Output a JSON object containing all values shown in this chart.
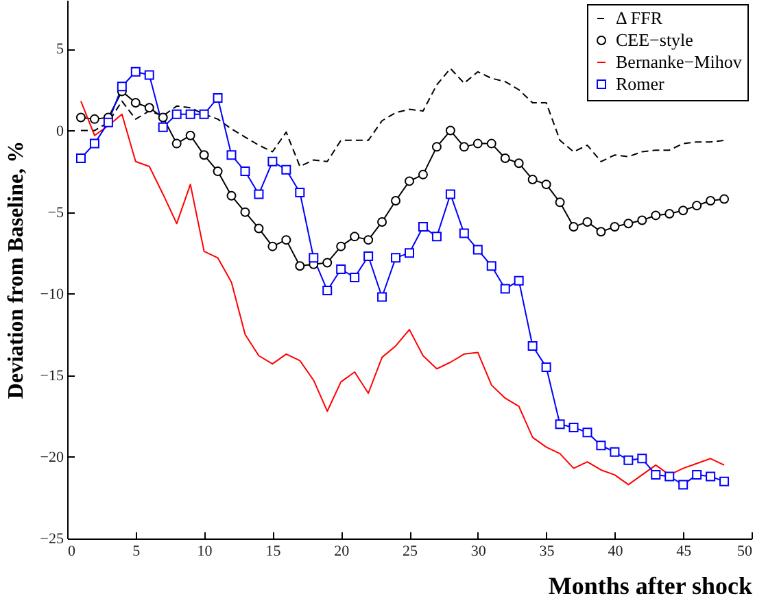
{
  "chart_data": {
    "type": "line",
    "xlabel": "Months after shock",
    "ylabel": "Deviation from Baseline, %",
    "x": [
      1,
      2,
      3,
      4,
      5,
      6,
      7,
      8,
      9,
      10,
      11,
      12,
      13,
      14,
      15,
      16,
      17,
      18,
      19,
      20,
      21,
      22,
      23,
      24,
      25,
      26,
      27,
      28,
      29,
      30,
      31,
      32,
      33,
      34,
      35,
      36,
      37,
      38,
      39,
      40,
      41,
      42,
      43,
      44,
      45,
      46,
      47,
      48
    ],
    "xlim": [
      0,
      50
    ],
    "xticks": [
      0,
      5,
      10,
      15,
      20,
      25,
      30,
      35,
      40,
      45,
      50
    ],
    "ylim": [
      -25,
      8
    ],
    "yticks": [
      -25,
      -20,
      -15,
      -10,
      -5,
      0,
      5
    ],
    "grid": false,
    "legend": "top right",
    "series": [
      {
        "name": "Δ FFR",
        "color": "#000000",
        "marker": "none",
        "line_style": "dashed",
        "values": [
          0.0,
          0.0,
          0.5,
          1.8,
          0.7,
          1.2,
          0.9,
          1.5,
          1.4,
          1.0,
          0.7,
          0.1,
          -0.4,
          -0.9,
          -1.3,
          -0.1,
          -2.2,
          -1.8,
          -1.9,
          -0.6,
          -0.6,
          -0.6,
          0.6,
          1.1,
          1.3,
          1.2,
          2.8,
          3.8,
          2.9,
          3.6,
          3.2,
          3.0,
          2.5,
          1.7,
          1.7,
          -0.6,
          -1.3,
          -0.9,
          -1.9,
          -1.5,
          -1.6,
          -1.3,
          -1.2,
          -1.2,
          -0.8,
          -0.7,
          -0.7,
          -0.6
        ]
      },
      {
        "name": "CEE−style",
        "color": "#000000",
        "marker": "circle",
        "line_style": "solid",
        "values": [
          0.8,
          0.7,
          0.8,
          2.4,
          1.7,
          1.4,
          0.8,
          -0.8,
          -0.3,
          -1.5,
          -2.5,
          -4.0,
          -5.0,
          -6.0,
          -7.1,
          -6.7,
          -8.3,
          -8.2,
          -8.1,
          -7.1,
          -6.5,
          -6.7,
          -5.6,
          -4.3,
          -3.1,
          -2.7,
          -1.0,
          0.0,
          -1.0,
          -0.8,
          -0.8,
          -1.7,
          -2.0,
          -3.0,
          -3.3,
          -4.4,
          -5.9,
          -5.6,
          -6.2,
          -5.9,
          -5.7,
          -5.5,
          -5.2,
          -5.1,
          -4.9,
          -4.6,
          -4.3,
          -4.2
        ]
      },
      {
        "name": "Bernanke−Mihov",
        "color": "#ff0000",
        "marker": "none",
        "line_style": "solid",
        "values": [
          1.8,
          -0.3,
          0.3,
          1.0,
          -1.9,
          -2.2,
          -3.9,
          -5.7,
          -3.3,
          -7.4,
          -7.8,
          -9.3,
          -12.5,
          -13.8,
          -14.3,
          -13.7,
          -14.1,
          -15.3,
          -17.2,
          -15.4,
          -14.8,
          -16.1,
          -13.9,
          -13.2,
          -12.2,
          -13.8,
          -14.6,
          -14.2,
          -13.7,
          -13.6,
          -15.6,
          -16.4,
          -16.9,
          -18.8,
          -19.4,
          -19.8,
          -20.7,
          -20.3,
          -20.8,
          -21.1,
          -21.7,
          -21.1,
          -20.5,
          -21.1,
          -20.7,
          -20.4,
          -20.1,
          -20.5
        ]
      },
      {
        "name": "Romer",
        "color": "#0000ff",
        "marker": "square",
        "line_style": "solid",
        "values": [
          -1.7,
          -0.8,
          0.5,
          2.7,
          3.6,
          3.4,
          0.2,
          1.0,
          1.0,
          1.0,
          2.0,
          -1.5,
          -2.5,
          -3.9,
          -1.9,
          -2.4,
          -3.8,
          -7.8,
          -9.8,
          -8.5,
          -9.0,
          -7.7,
          -10.2,
          -7.8,
          -7.5,
          -5.9,
          -6.5,
          -3.9,
          -6.3,
          -7.3,
          -8.3,
          -9.7,
          -9.2,
          -13.2,
          -14.5,
          -18.0,
          -18.2,
          -18.5,
          -19.3,
          -19.7,
          -20.2,
          -20.1,
          -21.1,
          -21.2,
          -21.7,
          -21.1,
          -21.2,
          -21.5
        ]
      }
    ]
  }
}
